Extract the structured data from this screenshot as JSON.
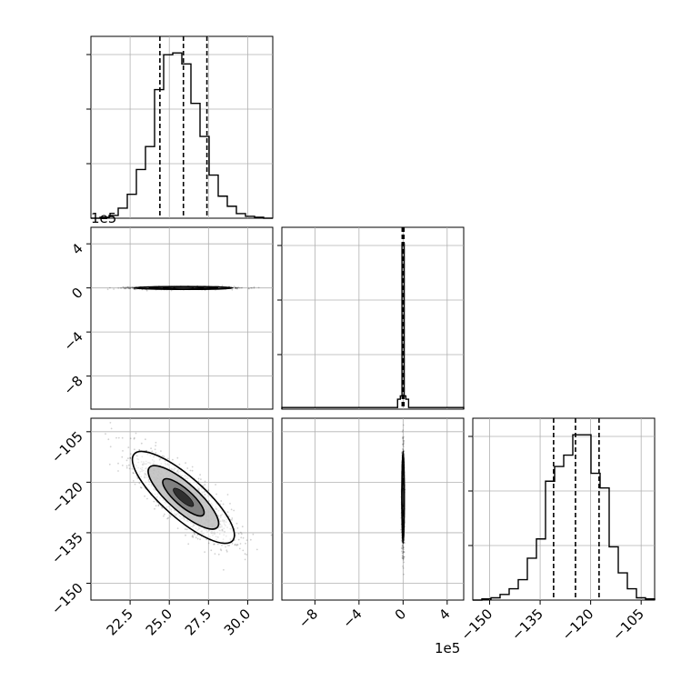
{
  "chart_data": {
    "type": "corner",
    "title": "",
    "parameters": [
      {
        "name": "",
        "range": [
          20.0,
          31.6
        ],
        "ticks": [
          22.5,
          25.0,
          27.5,
          30.0
        ],
        "tick_labels": [
          "22.5",
          "25.0",
          "27.5",
          "30.0"
        ]
      },
      {
        "name": "",
        "range": [
          -1.1,
          0.55
        ],
        "scale_label": "1e5",
        "ticks": [
          -0.8,
          -0.4,
          0.0,
          0.4
        ],
        "tick_labels": [
          "−8",
          "−4",
          "0",
          "4"
        ]
      },
      {
        "name": "",
        "range": [
          -155.0,
          -101.0
        ],
        "ticks": [
          -150,
          -135,
          -120,
          -105
        ],
        "tick_labels": [
          "−150",
          "−135",
          "−120",
          "−105"
        ]
      }
    ],
    "quantile_lines": [
      {
        "parameter": 0,
        "values": [
          24.4,
          25.9,
          27.4
        ]
      },
      {
        "parameter": 1,
        "values": [
          -0.008,
          0.0,
          0.008
        ]
      },
      {
        "parameter": 2,
        "values": [
          -131.0,
          -124.5,
          -117.5
        ]
      }
    ],
    "histograms": [
      {
        "parameter": 0,
        "bin_edges": [
          20.0,
          20.58,
          21.16,
          21.74,
          22.32,
          22.9,
          23.48,
          24.06,
          24.64,
          25.22,
          25.8,
          26.38,
          26.96,
          27.54,
          28.12,
          28.7,
          29.28,
          29.86,
          30.44,
          31.02,
          31.6
        ],
        "counts": [
          0,
          1,
          3,
          11,
          26,
          53,
          78,
          140,
          178,
          180,
          168,
          125,
          89,
          47,
          24,
          13,
          5,
          2,
          1,
          0
        ]
      },
      {
        "parameter": 1,
        "bin_edges": [
          -1.1,
          -0.1,
          -0.05,
          -0.025,
          -0.01,
          0.0,
          0.01,
          0.025,
          0.05,
          0.55
        ],
        "counts": [
          1,
          1,
          6,
          8,
          100,
          100,
          8,
          6,
          1
        ]
      },
      {
        "parameter": 2,
        "bin_edges": [
          -155.0,
          -152.3,
          -149.6,
          -146.9,
          -144.2,
          -141.5,
          -138.8,
          -136.1,
          -133.4,
          -130.7,
          -128.0,
          -125.3,
          -122.6,
          -119.9,
          -117.2,
          -114.5,
          -111.8,
          -109.1,
          -106.4,
          -103.7,
          -101.0
        ],
        "counts": [
          0,
          1,
          2,
          5,
          10,
          18,
          37,
          54,
          105,
          118,
          128,
          146,
          146,
          112,
          99,
          47,
          24,
          10,
          2,
          1
        ]
      }
    ],
    "contour_panels": [
      {
        "x_param": 0,
        "y_param": 1,
        "center": [
          25.9,
          0.0
        ],
        "spread": [
          1.5,
          0.006
        ],
        "correlation": 0.0
      },
      {
        "x_param": 0,
        "y_param": 2,
        "center": [
          25.9,
          -124.5
        ],
        "spread": [
          1.55,
          6.5
        ],
        "correlation": -0.82
      },
      {
        "x_param": 1,
        "y_param": 2,
        "center": [
          0.0,
          -124.5
        ],
        "spread": [
          0.005,
          6.5
        ],
        "correlation": 0.0
      }
    ],
    "grid": true,
    "legend": "none"
  }
}
